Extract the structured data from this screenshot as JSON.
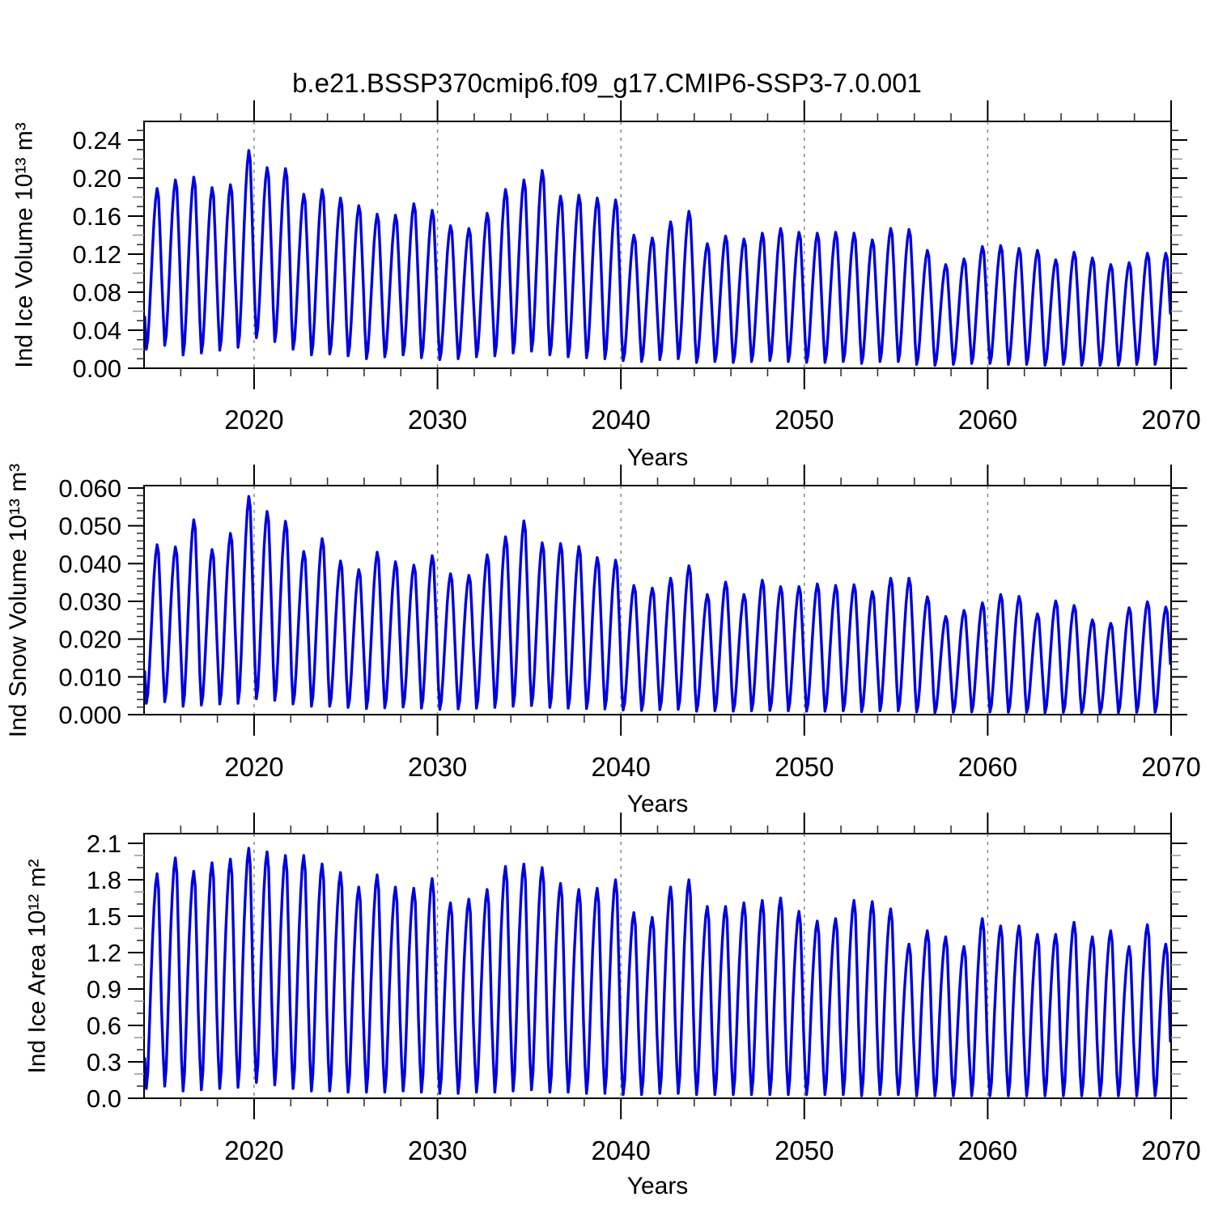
{
  "title": "b.e21.BSSP370cmip6.f09_g17.CMIP6-SSP3-7.0.001",
  "line_color": "#0101dd",
  "grid_color": "#808080",
  "chart_data": [
    {
      "type": "line",
      "panel": "ice-volume",
      "ylabel": "Ind Ice Volume 10¹³ m³",
      "xlabel": "Years",
      "x_range": [
        2014,
        2070
      ],
      "x_major_ticks": [
        2020,
        2030,
        2040,
        2050,
        2060,
        2070
      ],
      "x_minor_step": 2,
      "gridline_years": [
        2020,
        2030,
        2040,
        2050,
        2060
      ],
      "y_tick_labels": [
        "0.00",
        "0.04",
        "0.08",
        "0.12",
        "0.16",
        "0.20",
        "0.24"
      ],
      "y_major_ticks": [
        0,
        0.04,
        0.08,
        0.12,
        0.16,
        0.2,
        0.24
      ],
      "y_minor_step": 0.01,
      "legend": null,
      "grid": "vertical-dashed",
      "year_start": 2014,
      "year_end": 2069,
      "seasonal_weights": [
        0.2,
        0.0,
        0.06,
        0.22,
        0.42,
        0.62,
        0.8,
        0.93,
        1.0,
        0.95,
        0.72,
        0.46
      ],
      "annual_max": [
        0.189,
        0.198,
        0.201,
        0.19,
        0.193,
        0.229,
        0.211,
        0.21,
        0.183,
        0.188,
        0.179,
        0.171,
        0.162,
        0.161,
        0.173,
        0.166,
        0.15,
        0.147,
        0.163,
        0.188,
        0.198,
        0.208,
        0.181,
        0.182,
        0.179,
        0.177,
        0.14,
        0.137,
        0.154,
        0.165,
        0.131,
        0.139,
        0.136,
        0.142,
        0.147,
        0.143,
        0.142,
        0.143,
        0.142,
        0.135,
        0.147,
        0.146,
        0.124,
        0.109,
        0.115,
        0.128,
        0.129,
        0.126,
        0.124,
        0.114,
        0.122,
        0.116,
        0.109,
        0.111,
        0.121,
        0.121
      ],
      "annual_min": [
        0.02,
        0.024,
        0.014,
        0.016,
        0.019,
        0.022,
        0.032,
        0.028,
        0.02,
        0.014,
        0.015,
        0.013,
        0.01,
        0.012,
        0.014,
        0.011,
        0.009,
        0.01,
        0.012,
        0.013,
        0.016,
        0.018,
        0.014,
        0.012,
        0.011,
        0.01,
        0.008,
        0.007,
        0.009,
        0.01,
        0.006,
        0.007,
        0.006,
        0.007,
        0.008,
        0.007,
        0.006,
        0.006,
        0.007,
        0.005,
        0.007,
        0.007,
        0.004,
        0.003,
        0.004,
        0.005,
        0.005,
        0.004,
        0.004,
        0.003,
        0.004,
        0.003,
        0.003,
        0.003,
        0.004,
        0.004
      ],
      "note": "monthly values = min + weight[month]*(max-min); peak Sep, trough Feb"
    },
    {
      "type": "line",
      "panel": "snow-volume",
      "ylabel": "Ind Snow Volume 10¹³ m³",
      "xlabel": "Years",
      "x_range": [
        2014,
        2070
      ],
      "x_major_ticks": [
        2020,
        2030,
        2040,
        2050,
        2060,
        2070
      ],
      "x_minor_step": 2,
      "gridline_years": [
        2020,
        2030,
        2040,
        2050,
        2060
      ],
      "y_tick_labels": [
        "0.000",
        "0.010",
        "0.020",
        "0.030",
        "0.040",
        "0.050",
        "0.060"
      ],
      "y_major_ticks": [
        0,
        0.01,
        0.02,
        0.03,
        0.04,
        0.05,
        0.06
      ],
      "y_minor_step": 0.002,
      "legend": null,
      "grid": "vertical-dashed",
      "year_start": 2014,
      "year_end": 2069,
      "seasonal_weights": [
        0.2,
        0.0,
        0.06,
        0.22,
        0.42,
        0.62,
        0.8,
        0.93,
        1.0,
        0.95,
        0.72,
        0.46
      ],
      "annual_max": [
        0.045,
        0.0444,
        0.0516,
        0.0437,
        0.048,
        0.0578,
        0.0538,
        0.0512,
        0.0432,
        0.0466,
        0.0407,
        0.0384,
        0.043,
        0.0405,
        0.0396,
        0.0421,
        0.0373,
        0.0369,
        0.0423,
        0.0471,
        0.0513,
        0.0455,
        0.0453,
        0.0445,
        0.0416,
        0.0409,
        0.0342,
        0.0335,
        0.0361,
        0.0394,
        0.0318,
        0.0351,
        0.0318,
        0.0356,
        0.0339,
        0.0339,
        0.0346,
        0.0342,
        0.0344,
        0.0326,
        0.0361,
        0.0361,
        0.0312,
        0.026,
        0.0276,
        0.0296,
        0.0318,
        0.0313,
        0.0267,
        0.0301,
        0.0289,
        0.0251,
        0.0242,
        0.0283,
        0.0299,
        0.0285
      ],
      "annual_min": [
        0.003,
        0.0034,
        0.0022,
        0.0025,
        0.0028,
        0.003,
        0.0042,
        0.0038,
        0.0028,
        0.0022,
        0.0022,
        0.0019,
        0.0016,
        0.0018,
        0.002,
        0.0017,
        0.0014,
        0.0015,
        0.0017,
        0.0019,
        0.0022,
        0.0024,
        0.0019,
        0.0017,
        0.0016,
        0.0015,
        0.0012,
        0.0011,
        0.0013,
        0.0014,
        0.0009,
        0.001,
        0.0009,
        0.001,
        0.0011,
        0.001,
        0.0009,
        0.0009,
        0.001,
        0.0008,
        0.001,
        0.001,
        0.0007,
        0.0005,
        0.0006,
        0.0007,
        0.0007,
        0.0006,
        0.0006,
        0.0005,
        0.0006,
        0.0005,
        0.0005,
        0.0005,
        0.0006,
        0.0006
      ],
      "note": "monthly values = min + weight[month]*(max-min); peak Sep, trough Feb"
    },
    {
      "type": "line",
      "panel": "ice-area",
      "ylabel": "Ind Ice Area 10¹² m²",
      "xlabel": "Years",
      "x_range": [
        2014,
        2070
      ],
      "x_major_ticks": [
        2020,
        2030,
        2040,
        2050,
        2060,
        2070
      ],
      "x_minor_step": 2,
      "gridline_years": [
        2020,
        2030,
        2040,
        2050,
        2060
      ],
      "y_tick_labels": [
        "0.0",
        "0.3",
        "0.6",
        "0.9",
        "1.2",
        "1.5",
        "1.8",
        "2.1"
      ],
      "y_major_ticks": [
        0,
        0.3,
        0.6,
        0.9,
        1.2,
        1.5,
        1.8,
        2.1
      ],
      "y_minor_step": 0.1,
      "legend": null,
      "grid": "vertical-dashed",
      "year_start": 2014,
      "year_end": 2069,
      "seasonal_weights": [
        0.14,
        0.0,
        0.08,
        0.28,
        0.5,
        0.69,
        0.84,
        0.95,
        1.0,
        0.93,
        0.66,
        0.36
      ],
      "annual_max": [
        1.85,
        1.98,
        1.87,
        1.94,
        1.97,
        2.06,
        2.03,
        2.0,
        2.0,
        1.93,
        1.86,
        1.74,
        1.84,
        1.74,
        1.73,
        1.81,
        1.61,
        1.64,
        1.72,
        1.91,
        1.93,
        1.9,
        1.77,
        1.72,
        1.73,
        1.8,
        1.53,
        1.49,
        1.74,
        1.8,
        1.58,
        1.58,
        1.61,
        1.63,
        1.65,
        1.54,
        1.46,
        1.48,
        1.63,
        1.62,
        1.56,
        1.27,
        1.38,
        1.33,
        1.25,
        1.48,
        1.42,
        1.42,
        1.35,
        1.35,
        1.45,
        1.33,
        1.38,
        1.25,
        1.43,
        1.27
      ],
      "annual_min": [
        0.08,
        0.1,
        0.06,
        0.07,
        0.08,
        0.09,
        0.13,
        0.11,
        0.08,
        0.06,
        0.06,
        0.05,
        0.05,
        0.05,
        0.06,
        0.05,
        0.04,
        0.04,
        0.05,
        0.05,
        0.06,
        0.07,
        0.05,
        0.05,
        0.04,
        0.04,
        0.03,
        0.03,
        0.04,
        0.04,
        0.03,
        0.03,
        0.03,
        0.03,
        0.03,
        0.03,
        0.03,
        0.03,
        0.03,
        0.02,
        0.03,
        0.03,
        0.02,
        0.02,
        0.02,
        0.02,
        0.02,
        0.02,
        0.02,
        0.02,
        0.02,
        0.02,
        0.02,
        0.02,
        0.02,
        0.02
      ],
      "note": "monthly values = min + weight[month]*(max-min); peak Sep, trough Feb"
    }
  ]
}
